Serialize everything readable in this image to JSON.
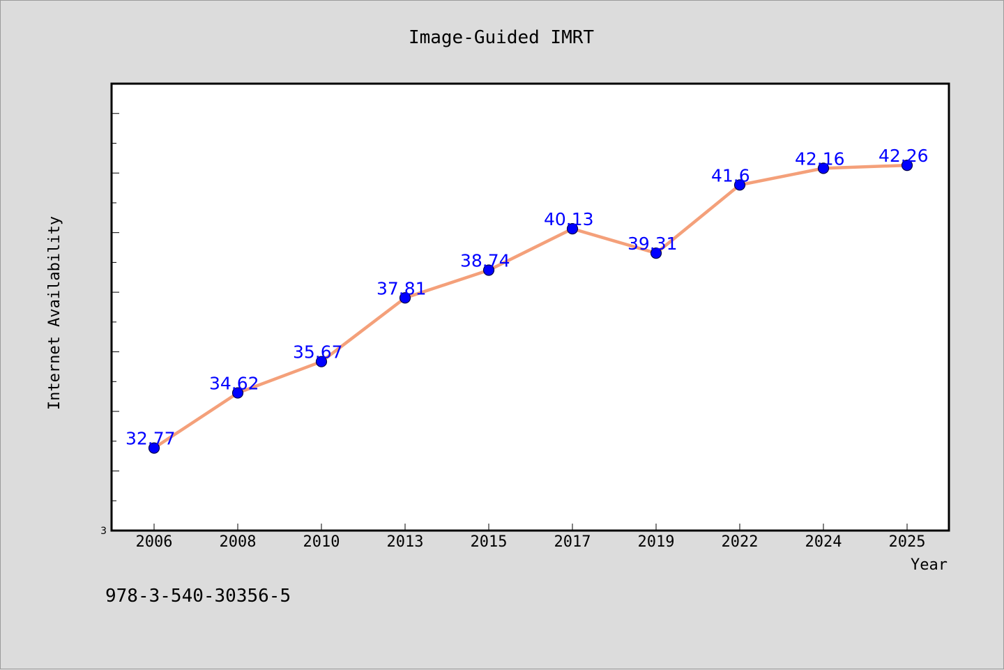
{
  "chart_data": {
    "type": "line",
    "title": "Image-Guided IMRT",
    "xlabel": "Year",
    "ylabel": "Internet Availability",
    "categories": [
      "2006",
      "2008",
      "2010",
      "2013",
      "2015",
      "2017",
      "2019",
      "2022",
      "2024",
      "2025"
    ],
    "series": [
      {
        "values": [
          32.77,
          34.62,
          35.67,
          37.81,
          38.74,
          40.13,
          39.31,
          41.6,
          42.16,
          42.26
        ],
        "line_color": "#f4a07a",
        "marker_color": "#0000ff"
      }
    ],
    "data_labels": [
      "32.77",
      "34.62",
      "35.67",
      "37.81",
      "38.74",
      "40.13",
      "39.31",
      "41.6",
      "42.16",
      "42.26"
    ],
    "ylim": [
      30,
      45
    ],
    "y_tick_labels": [
      "3"
    ],
    "grid": false,
    "legend": "none"
  },
  "footer": {
    "isbn": "978-3-540-30356-5"
  }
}
